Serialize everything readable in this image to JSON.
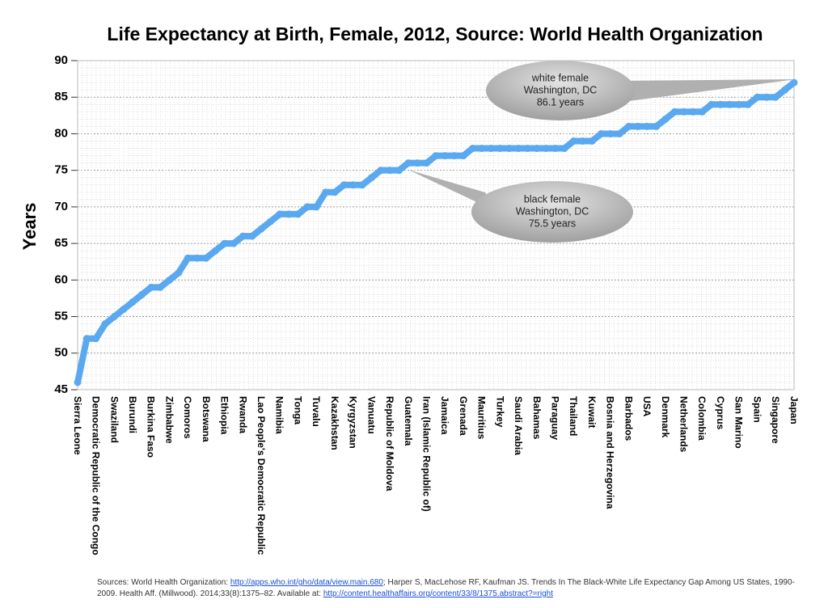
{
  "chart_data": {
    "type": "line",
    "title": "Life Expectancy at Birth, Female, 2012, Source: World Health Organization",
    "y_label": "Years",
    "color": "#5aa9f0",
    "grid": true,
    "ylim": [
      45,
      90
    ],
    "yticks": [
      45,
      50,
      55,
      60,
      65,
      70,
      75,
      80,
      85,
      90
    ],
    "categories": [
      "Sierra Leone",
      null,
      "Democratic Republic of the Congo",
      null,
      "Swaziland",
      null,
      "Burundi",
      null,
      "Burkina Faso",
      null,
      "Zimbabwe",
      null,
      "Comoros",
      null,
      "Botswana",
      null,
      "Ethiopia",
      null,
      "Rwanda",
      null,
      "Lao People's Democratic Republic",
      null,
      "Namibia",
      null,
      "Tonga",
      null,
      "Tuvalu",
      null,
      "Kazakhstan",
      null,
      "Kyrgyzstan",
      null,
      "Vanuatu",
      null,
      "Republic of Moldova",
      null,
      "Guatemala",
      null,
      "Iran (Islamic Republic of)",
      null,
      "Jamaica",
      null,
      "Grenada",
      null,
      "Mauritius",
      null,
      "Turkey",
      null,
      "Saudi Arabia",
      null,
      "Bahamas",
      null,
      "Paraguay",
      null,
      "Thailand",
      null,
      "Kuwait",
      null,
      "Bosnia and Herzegovina",
      null,
      "Barbados",
      null,
      "USA",
      null,
      "Denmark",
      null,
      "Netherlands",
      null,
      "Colombia",
      null,
      "Cyprus",
      null,
      "San Marino",
      null,
      "Spain",
      null,
      "Singapore",
      null,
      "Japan"
    ],
    "values": [
      46,
      52,
      52,
      54,
      55,
      56,
      57,
      58,
      59,
      59,
      60,
      61,
      63,
      63,
      63,
      64,
      65,
      65,
      66,
      66,
      67,
      68,
      69,
      69,
      69,
      70,
      70,
      72,
      72,
      73,
      73,
      73,
      74,
      75,
      75,
      75,
      76,
      76,
      76,
      77,
      77,
      77,
      77,
      78,
      78,
      78,
      78,
      78,
      78,
      78,
      78,
      78,
      78,
      78,
      79,
      79,
      79,
      80,
      80,
      80,
      81,
      81,
      81,
      81,
      82,
      83,
      83,
      83,
      83,
      84,
      84,
      84,
      84,
      84,
      85,
      85,
      85,
      86,
      87
    ],
    "annotations": [
      {
        "lines": [
          "white female",
          "Washington, DC",
          "86.1 years"
        ]
      },
      {
        "lines": [
          "black female",
          "Washington, DC",
          "75.5 years"
        ]
      }
    ],
    "source": {
      "text_1": "Sources: World Health Organization: ",
      "link_1": "http://apps.who.int/gho/data/view.main.680",
      "text_2": "; Harper S, MacLehose RF, Kaufman JS. Trends In The Black-White Life Expectancy Gap Among US States, 1990-2009. Health Aff. (Millwood). 2014;33(8):1375–82. Available at: ",
      "link_2": "http://content.healthaffairs.org/content/33/8/1375.abstract?=right"
    }
  }
}
